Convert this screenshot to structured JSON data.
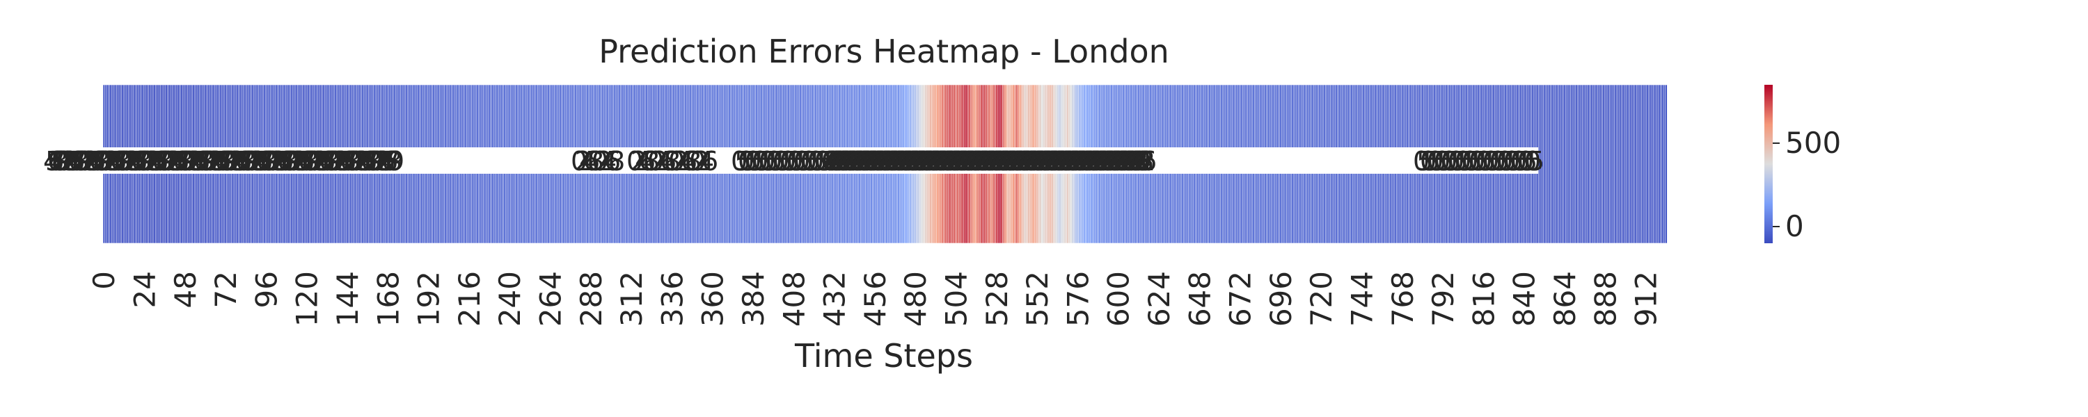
{
  "chart_data": {
    "type": "heatmap",
    "title": "Prediction Errors Heatmap - London",
    "xlabel": "Time Steps",
    "ylabel": "",
    "x_tick_labels": [
      "0",
      "24",
      "48",
      "72",
      "96",
      "120",
      "144",
      "168",
      "192",
      "216",
      "240",
      "264",
      "288",
      "312",
      "336",
      "360",
      "384",
      "408",
      "432",
      "456",
      "480",
      "504",
      "528",
      "552",
      "576",
      "600",
      "624",
      "648",
      "672",
      "696",
      "720",
      "744",
      "768",
      "792",
      "816",
      "840",
      "864",
      "888",
      "912"
    ],
    "n_columns": 925,
    "row_count": 1,
    "colorbar": {
      "colormap": "coolwarm",
      "range": [
        -100,
        850
      ],
      "ticks": [
        "0",
        "500"
      ],
      "tick_values": [
        0,
        500
      ]
    },
    "annotation_digits_note": "",
    "values_sampled": {
      "x": [
        0,
        10,
        20,
        30,
        40,
        50,
        60,
        70,
        80,
        90,
        100,
        110,
        120,
        130,
        140,
        150,
        160,
        170,
        180,
        190,
        200,
        210,
        220,
        230,
        240,
        250,
        260,
        270,
        280,
        290,
        300,
        310,
        320,
        330,
        340,
        350,
        360,
        370,
        380,
        390,
        400,
        410,
        420,
        430,
        440,
        450,
        460,
        470,
        475,
        480,
        485,
        490,
        495,
        500,
        505,
        510,
        515,
        520,
        525,
        530,
        535,
        540,
        545,
        550,
        555,
        560,
        565,
        570,
        575,
        580,
        585,
        590,
        600,
        610,
        620,
        630,
        640,
        650,
        660,
        670,
        680,
        690,
        700,
        710,
        720,
        730,
        740,
        750,
        760,
        770,
        780,
        790,
        800,
        810,
        820,
        830,
        840,
        850,
        860,
        870,
        880,
        890,
        900,
        910,
        920,
        924
      ],
      "y": [
        -80,
        -90,
        -85,
        -100,
        -95,
        -90,
        -85,
        -80,
        -75,
        -70,
        -65,
        -70,
        -75,
        -70,
        -65,
        -60,
        -55,
        -50,
        -45,
        -40,
        -40,
        -35,
        -30,
        -30,
        -25,
        -20,
        -20,
        -15,
        -10,
        -5,
        -10,
        -15,
        -20,
        -15,
        -10,
        -5,
        0,
        5,
        10,
        5,
        0,
        10,
        20,
        30,
        40,
        50,
        60,
        80,
        150,
        250,
        400,
        550,
        650,
        750,
        700,
        820,
        600,
        780,
        650,
        850,
        500,
        700,
        420,
        600,
        380,
        520,
        300,
        450,
        250,
        150,
        100,
        60,
        40,
        20,
        10,
        0,
        -5,
        -10,
        -15,
        -20,
        -20,
        -25,
        -30,
        -30,
        -35,
        -40,
        -40,
        -45,
        -50,
        -50,
        -55,
        -55,
        -60,
        -60,
        -65,
        -65,
        -70,
        -70,
        -70,
        -75,
        -75,
        -75,
        -80,
        -80,
        -80,
        -80
      ]
    }
  }
}
